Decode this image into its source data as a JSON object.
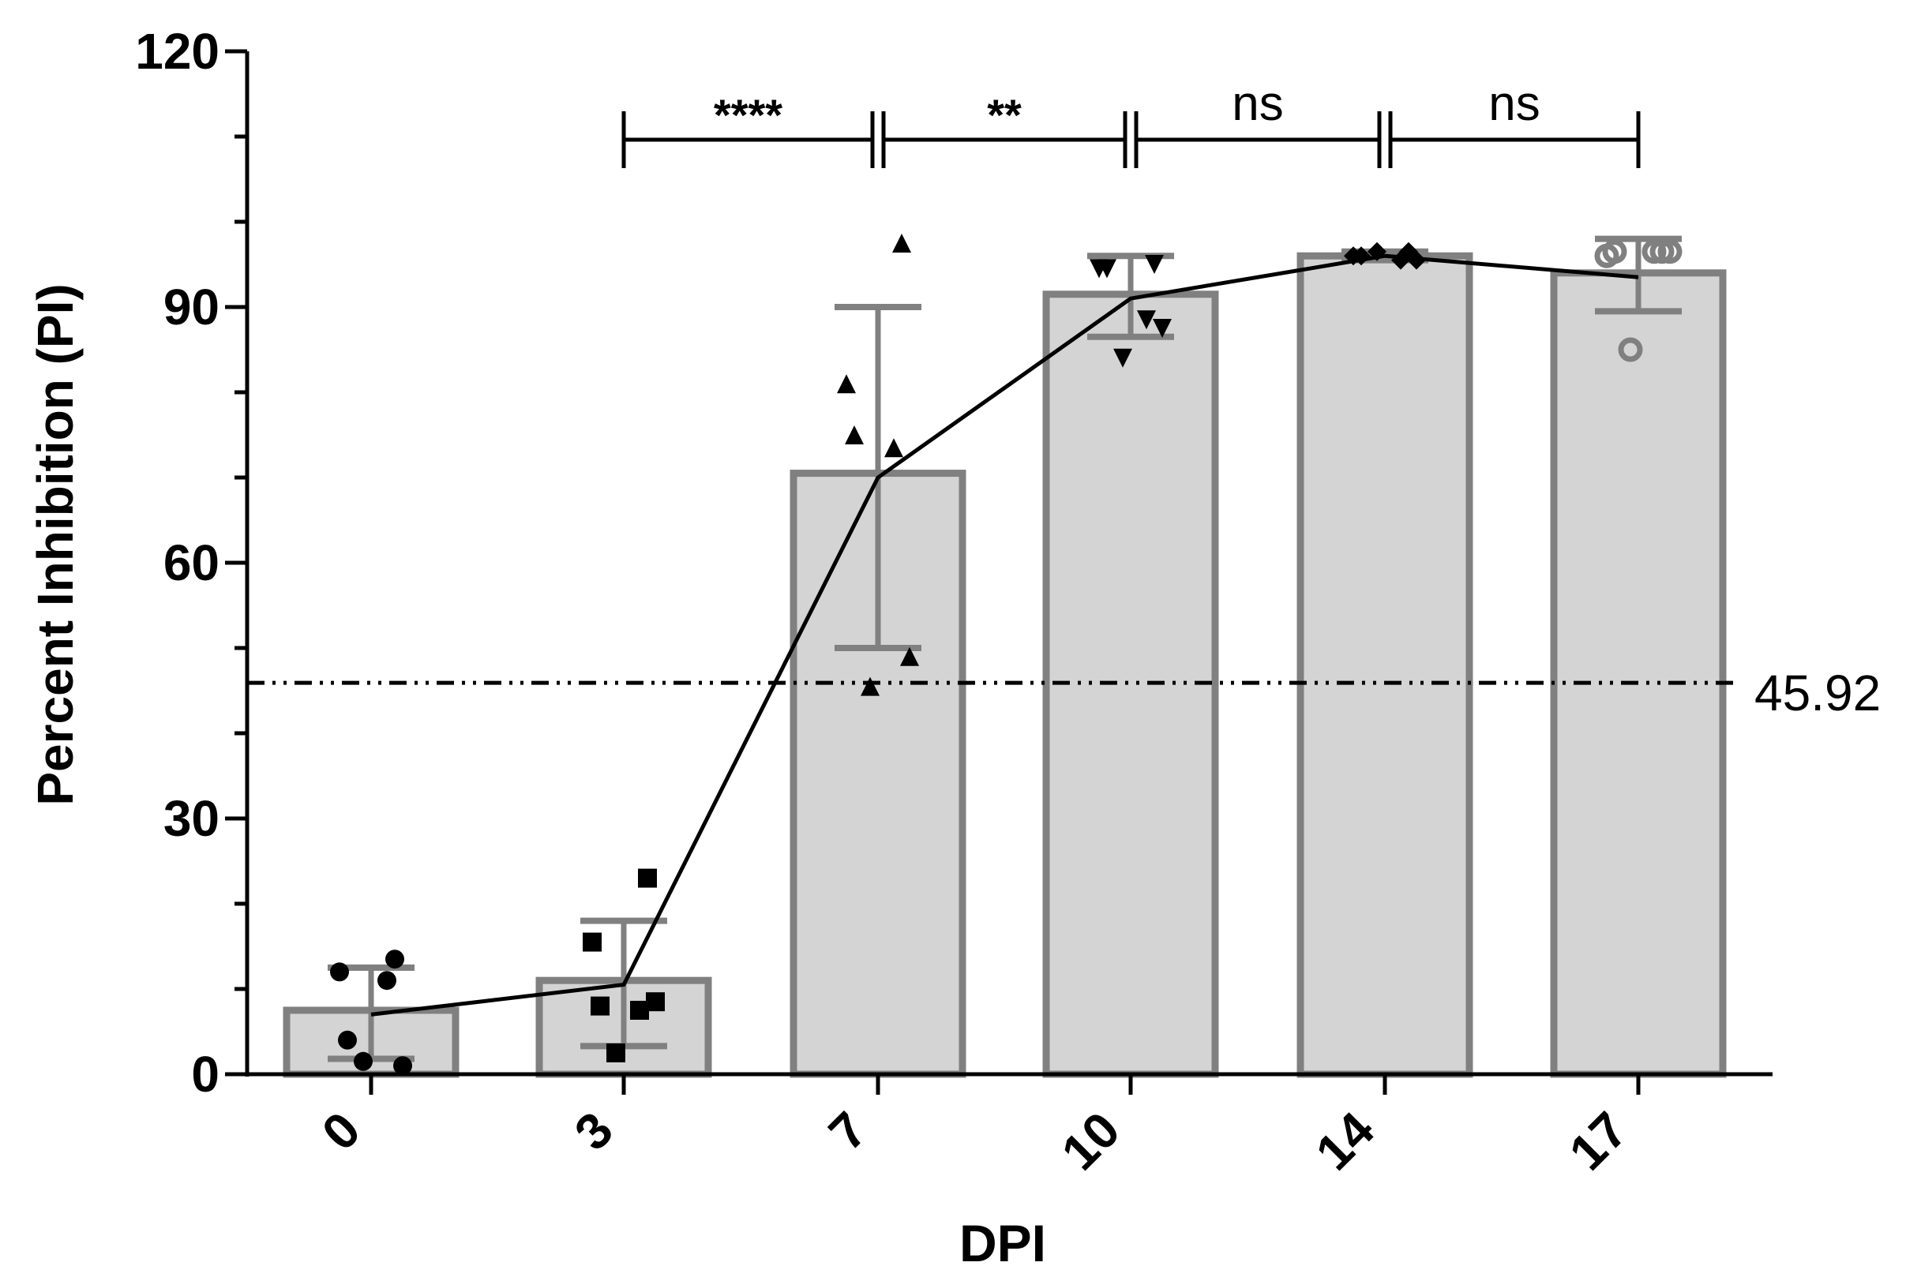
{
  "chart_data": {
    "type": "bar",
    "xlabel": "DPI",
    "ylabel": "Percent Inhibition (PI)",
    "ylim": [
      0,
      120
    ],
    "yticks": [
      "0",
      "30",
      "60",
      "90",
      "120"
    ],
    "categories": [
      "0",
      "3",
      "7",
      "10",
      "14",
      "17"
    ],
    "values": [
      7.5,
      11,
      70.5,
      91.5,
      96,
      94
    ],
    "error_low": [
      1.8,
      3.3,
      50,
      86.5,
      95.5,
      89.5
    ],
    "error_high": [
      12.5,
      18,
      90,
      96,
      96.5,
      98
    ],
    "mean_line": [
      7,
      10.5,
      70,
      91,
      96,
      93.5
    ],
    "points": [
      {
        "marker": "circle",
        "values": [
          13.5,
          12,
          4,
          11,
          1,
          1.5
        ]
      },
      {
        "marker": "square",
        "values": [
          23,
          15.5,
          8,
          7.5,
          8.5,
          2.5
        ]
      },
      {
        "marker": "triangle-up",
        "values": [
          97.5,
          81,
          75,
          73.5,
          49,
          45.5
        ]
      },
      {
        "marker": "triangle-down",
        "values": [
          95,
          94.5,
          94.5,
          88.5,
          87.5,
          84
        ]
      },
      {
        "marker": "diamond",
        "values": [
          96.5,
          96,
          96,
          95.5,
          95.5,
          96.5
        ]
      },
      {
        "marker": "open-circle",
        "values": [
          96.5,
          96,
          96.5,
          96.5,
          96.5,
          85
        ]
      }
    ],
    "cutoff": {
      "value": 45.92,
      "label": "45.92"
    },
    "significance": [
      {
        "from": 1,
        "to": 2,
        "label": "****"
      },
      {
        "from": 2,
        "to": 3,
        "label": "**"
      },
      {
        "from": 3,
        "to": 4,
        "label": "ns"
      },
      {
        "from": 4,
        "to": 5,
        "label": "ns"
      }
    ],
    "colors": {
      "bar_fill": "#d4d4d4",
      "bar_edge": "#808080",
      "error_bar": "#808080",
      "axis": "#000000",
      "line": "#000000"
    },
    "grid": false,
    "legend": "none"
  }
}
